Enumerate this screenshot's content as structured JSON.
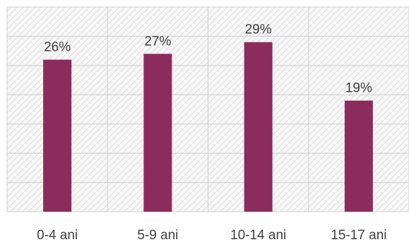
{
  "chart_data": {
    "type": "bar",
    "categories": [
      "0-4 ani",
      "5-9 ani",
      "10-14 ani",
      "15-17 ani"
    ],
    "values": [
      26,
      27,
      29,
      19
    ],
    "data_labels": [
      "26%",
      "27%",
      "29%",
      "19%"
    ],
    "title": "",
    "xlabel": "",
    "ylabel": "",
    "ylim": [
      0,
      35
    ],
    "grid": true,
    "legend": "none",
    "bar_color": "#8b2c5c",
    "plot_background": "hatched light gray"
  }
}
